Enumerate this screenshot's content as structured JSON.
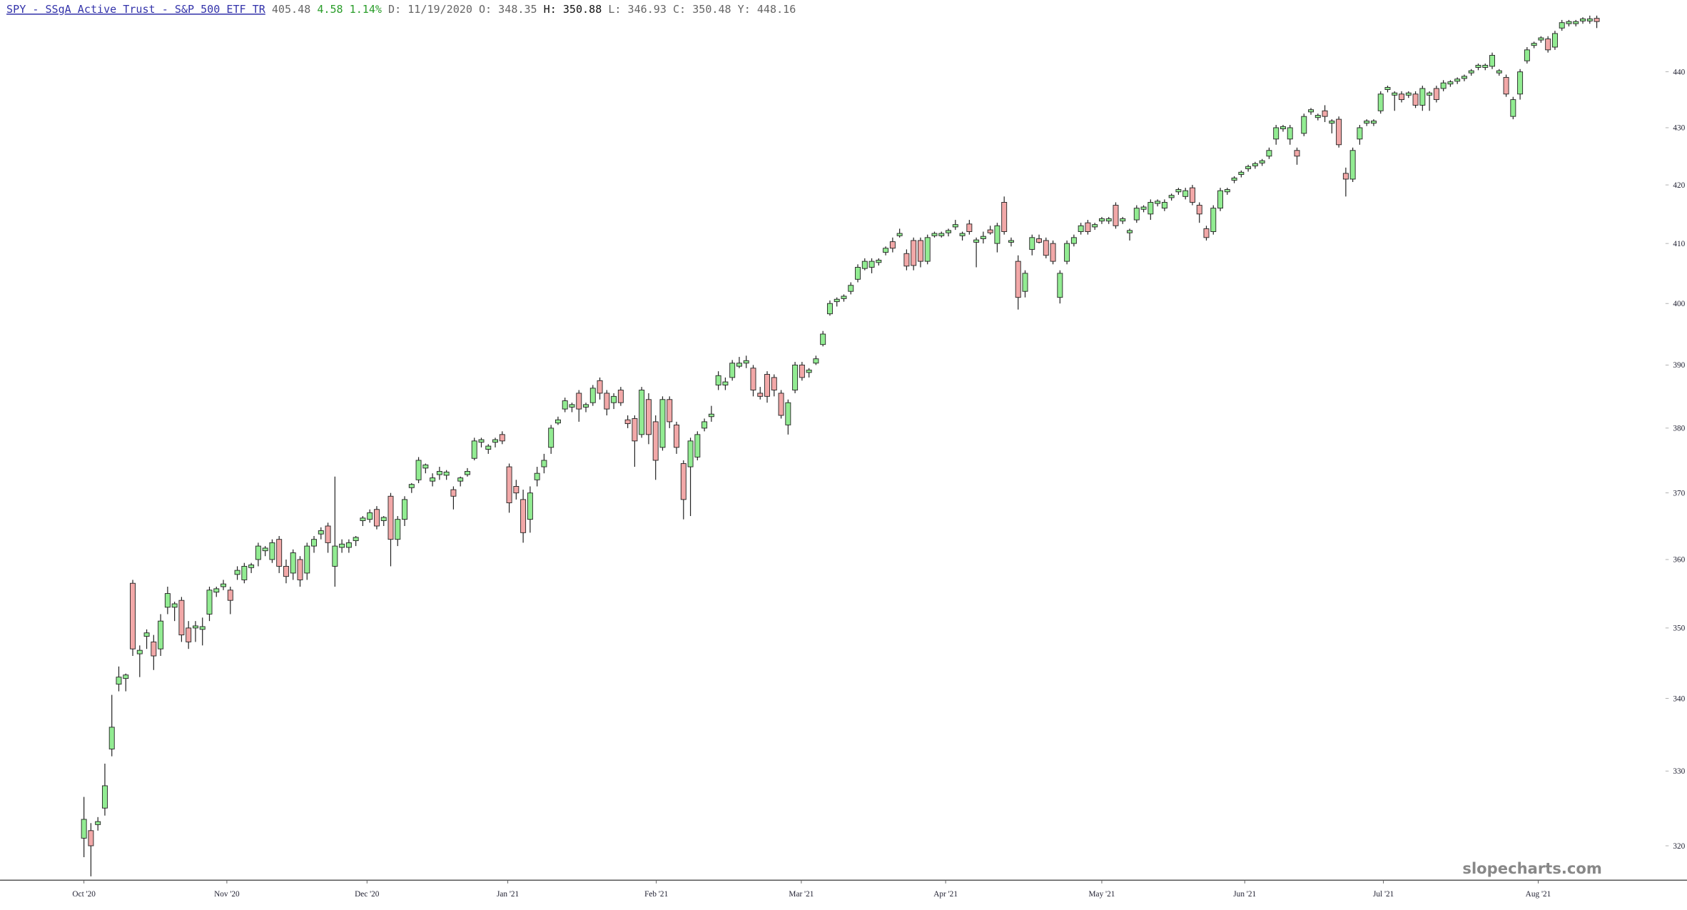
{
  "header": {
    "symbol": "SPY - SSgA Active Trust - S&P 500 ETF TR",
    "last": "405.48",
    "change": "4.58",
    "change_pct": "1.14%",
    "date": "D: 11/19/2020",
    "open": "O: 348.35",
    "high": "H: 350.88",
    "low": "L: 346.93",
    "close": "C: 350.48",
    "year_high": "Y: 448.16"
  },
  "chart_data": {
    "type": "candlestick",
    "watermark": "slopecharts.com",
    "up_color": "#92ec92",
    "down_color": "#f2a8a8",
    "log_scale": true,
    "ylim": [
      315.5,
      451
    ],
    "yticks": [
      320,
      330,
      340,
      350,
      360,
      370,
      380,
      390,
      400,
      410,
      420,
      430,
      440
    ],
    "xlim": [
      -12.04,
      229.94
    ],
    "xticks": [
      {
        "value": 0,
        "label": "Oct '20"
      },
      {
        "value": 20.5,
        "label": "Nov '20"
      },
      {
        "value": 40.6,
        "label": "Dec '20"
      },
      {
        "value": 60.8,
        "label": "Jan '21"
      },
      {
        "value": 82.1,
        "label": "Feb '21"
      },
      {
        "value": 102.9,
        "label": "Mar '21"
      },
      {
        "value": 123.6,
        "label": "Apr '21"
      },
      {
        "value": 146,
        "label": "May '21"
      },
      {
        "value": 166.5,
        "label": "Jun '21"
      },
      {
        "value": 186.4,
        "label": "Jul '21"
      },
      {
        "value": 208.6,
        "label": "Aug '21"
      }
    ],
    "ohlc": [
      [
        321,
        326.5,
        318.5,
        323.5
      ],
      [
        322,
        323,
        316,
        320
      ],
      [
        322.8,
        323.8,
        322,
        323.2
      ],
      [
        325,
        331,
        324,
        328
      ],
      [
        333,
        340.5,
        332,
        336
      ],
      [
        342,
        344.5,
        341,
        343
      ],
      [
        342.8,
        343.5,
        341,
        343.3
      ],
      [
        356.5,
        357,
        346,
        347
      ],
      [
        346.3,
        347.5,
        343,
        346.8
      ],
      [
        348.8,
        349.8,
        347,
        349.3
      ],
      [
        348,
        349,
        344,
        346
      ],
      [
        347,
        352,
        346,
        351
      ],
      [
        353,
        356,
        352,
        355
      ],
      [
        353,
        353.8,
        351,
        353.5
      ],
      [
        354,
        354.5,
        348,
        349
      ],
      [
        350,
        351,
        347,
        348
      ],
      [
        350,
        351,
        348,
        350.3
      ],
      [
        349.8,
        351.5,
        347.5,
        350.2
      ],
      [
        352,
        356,
        351,
        355.5
      ],
      [
        355.2,
        356,
        354.5,
        355.7
      ],
      [
        356,
        357,
        355.5,
        356.4
      ],
      [
        355.5,
        356,
        352,
        354
      ],
      [
        357.8,
        359,
        357,
        358.4
      ],
      [
        357,
        359.5,
        356.5,
        359
      ],
      [
        358.8,
        359.5,
        358,
        359.2
      ],
      [
        360,
        362.5,
        359,
        362
      ],
      [
        361.3,
        362,
        360.5,
        361.7
      ],
      [
        360,
        363,
        359.5,
        362.5
      ],
      [
        363,
        363.5,
        358,
        359
      ],
      [
        359,
        360,
        356.5,
        357.5
      ],
      [
        358,
        361.5,
        357,
        361
      ],
      [
        360,
        360.5,
        356,
        357
      ],
      [
        358,
        362.5,
        357,
        362
      ],
      [
        362,
        363.5,
        361,
        363
      ],
      [
        363.8,
        364.8,
        363,
        364.3
      ],
      [
        365,
        365.5,
        361,
        362.5
      ],
      [
        359,
        372.5,
        356,
        362
      ],
      [
        361.8,
        363,
        361,
        362.3
      ],
      [
        361.8,
        363,
        361,
        362.5
      ],
      [
        362.8,
        363.5,
        362,
        363.3
      ],
      [
        365.8,
        366.5,
        365,
        366.2
      ],
      [
        366,
        367.5,
        365.5,
        367
      ],
      [
        367.5,
        368,
        364.5,
        365
      ],
      [
        365.8,
        366.5,
        365,
        366.3
      ],
      [
        369.5,
        370,
        359,
        363
      ],
      [
        363,
        366.5,
        362,
        366
      ],
      [
        366,
        369.5,
        365,
        369
      ],
      [
        370.8,
        371.5,
        370,
        371.3
      ],
      [
        372,
        375.5,
        371.5,
        375
      ],
      [
        373.8,
        374.5,
        373,
        374.3
      ],
      [
        371.8,
        373,
        371,
        372.3
      ],
      [
        372.8,
        374,
        372,
        373.3
      ],
      [
        372.7,
        373.5,
        372,
        373.2
      ],
      [
        370.5,
        371,
        367.5,
        369.5
      ],
      [
        371.8,
        372.5,
        371,
        372.3
      ],
      [
        372.8,
        373.8,
        372.5,
        373.3
      ],
      [
        375.3,
        378.5,
        375,
        378
      ],
      [
        377.8,
        378.5,
        377,
        378.2
      ],
      [
        376.7,
        377.5,
        376,
        377.2
      ],
      [
        377.8,
        378.5,
        377,
        378.2
      ],
      [
        379,
        379.5,
        377.5,
        378
      ],
      [
        374,
        374.5,
        367,
        368.5
      ],
      [
        371,
        372,
        369,
        370
      ],
      [
        369,
        370.5,
        362.5,
        364
      ],
      [
        366,
        371,
        364,
        370
      ],
      [
        372,
        374,
        371,
        373
      ],
      [
        374,
        376,
        373,
        375
      ],
      [
        377,
        380.5,
        376,
        380
      ],
      [
        380.8,
        381.8,
        380.5,
        381.3
      ],
      [
        383,
        384.8,
        382.5,
        384.3
      ],
      [
        383.3,
        384,
        382.5,
        383.7
      ],
      [
        385.5,
        386,
        381,
        383
      ],
      [
        383.3,
        384,
        382.5,
        383.7
      ],
      [
        384,
        386.8,
        383.5,
        386.3
      ],
      [
        387.5,
        388,
        384.5,
        385.5
      ],
      [
        385.5,
        386,
        382,
        383
      ],
      [
        384,
        385.5,
        383,
        385
      ],
      [
        386,
        386.5,
        383.5,
        384
      ],
      [
        381.3,
        382,
        380,
        380.7
      ],
      [
        381.5,
        382,
        374,
        378
      ],
      [
        379,
        386.5,
        378.5,
        386
      ],
      [
        384.5,
        385.5,
        377.5,
        379
      ],
      [
        381,
        382,
        372,
        375
      ],
      [
        377,
        385,
        376.5,
        384.5
      ],
      [
        384.5,
        385,
        380,
        381
      ],
      [
        380.5,
        381,
        376,
        377
      ],
      [
        374.5,
        375,
        366,
        369
      ],
      [
        374,
        378.5,
        366.5,
        378
      ],
      [
        375.5,
        379.5,
        375,
        379
      ],
      [
        380,
        381.5,
        379.5,
        381
      ],
      [
        381.8,
        383.5,
        381,
        382.2
      ],
      [
        386.8,
        389,
        386,
        388.3
      ],
      [
        386.8,
        388,
        386,
        387.3
      ],
      [
        388,
        390.8,
        387.5,
        390.3
      ],
      [
        389.8,
        391.3,
        389.5,
        390.3
      ],
      [
        390.3,
        391.5,
        389.5,
        390.7
      ],
      [
        389.5,
        390,
        385,
        386
      ],
      [
        385.5,
        386.5,
        384.5,
        385
      ],
      [
        388.5,
        389,
        384,
        385
      ],
      [
        388,
        388.5,
        385,
        386
      ],
      [
        385.5,
        386,
        381.5,
        382
      ],
      [
        380.5,
        384.5,
        379,
        384
      ],
      [
        386,
        390.5,
        385.5,
        390
      ],
      [
        390,
        390.5,
        387.5,
        388
      ],
      [
        388.8,
        389.5,
        388,
        389.2
      ],
      [
        390.3,
        391.5,
        390,
        391
      ],
      [
        393.3,
        395.5,
        393,
        395
      ],
      [
        398.3,
        400.5,
        398,
        400
      ],
      [
        400.3,
        401,
        399.5,
        400.7
      ],
      [
        400.8,
        401.5,
        400.3,
        401.2
      ],
      [
        402,
        403.5,
        401.5,
        403
      ],
      [
        404,
        406.5,
        403.5,
        406
      ],
      [
        405.8,
        407.5,
        405.5,
        407
      ],
      [
        406,
        407.5,
        405,
        407
      ],
      [
        406.8,
        407.5,
        406.3,
        407.2
      ],
      [
        408.5,
        409.5,
        408,
        409.2
      ],
      [
        410.3,
        411,
        408.5,
        409.2
      ],
      [
        411.3,
        412.5,
        411,
        411.7
      ],
      [
        408.3,
        409,
        405.5,
        406.2
      ],
      [
        410.5,
        411,
        405.5,
        406.3
      ],
      [
        410.5,
        411,
        406,
        407
      ],
      [
        407,
        411.5,
        406.5,
        411
      ],
      [
        411.3,
        412,
        411,
        411.7
      ],
      [
        411.3,
        412,
        411,
        411.7
      ],
      [
        411.8,
        412.5,
        411.2,
        412.2
      ],
      [
        412.8,
        414,
        412.3,
        413.2
      ],
      [
        411.3,
        412,
        410.5,
        411.7
      ],
      [
        413.3,
        414,
        411.5,
        412
      ],
      [
        410.2,
        411,
        406,
        410.6
      ],
      [
        410.8,
        412,
        410,
        411.2
      ],
      [
        412.3,
        413,
        411.5,
        411.8
      ],
      [
        410,
        413.5,
        408.5,
        413
      ],
      [
        417,
        418,
        411.5,
        412
      ],
      [
        410.2,
        411,
        409.5,
        410.5
      ],
      [
        407,
        408,
        399,
        401
      ],
      [
        402,
        405.5,
        401,
        405
      ],
      [
        409,
        411.5,
        408,
        411
      ],
      [
        410.8,
        411.5,
        410,
        410.2
      ],
      [
        410.5,
        411,
        407.5,
        408
      ],
      [
        410,
        410.5,
        406.5,
        407
      ],
      [
        401,
        405.5,
        400,
        405
      ],
      [
        407,
        410.5,
        406.5,
        410
      ],
      [
        410,
        411.5,
        409.5,
        411
      ],
      [
        412,
        413.5,
        411.5,
        413
      ],
      [
        413.5,
        414,
        411.5,
        412
      ],
      [
        412.8,
        413.5,
        412.3,
        413.2
      ],
      [
        413.8,
        414.5,
        413.3,
        414.2
      ],
      [
        413.8,
        414.5,
        413.3,
        414.2
      ],
      [
        416.5,
        417,
        412.5,
        413
      ],
      [
        413.8,
        414.5,
        413.3,
        414.2
      ],
      [
        411.8,
        412.5,
        410.5,
        412.2
      ],
      [
        414,
        416.5,
        413.5,
        416
      ],
      [
        415.8,
        416.5,
        415.3,
        416.2
      ],
      [
        415,
        417.5,
        414,
        417
      ],
      [
        416.8,
        417.5,
        416.3,
        417.2
      ],
      [
        416,
        417.5,
        415.5,
        417
      ],
      [
        417.8,
        418.5,
        417.3,
        418.2
      ],
      [
        418.8,
        419.5,
        418.3,
        419.2
      ],
      [
        418,
        419.5,
        417.5,
        419
      ],
      [
        419.5,
        420,
        416.5,
        417
      ],
      [
        416.5,
        417,
        413.5,
        415
      ],
      [
        412.5,
        413,
        410.5,
        411
      ],
      [
        412,
        416.5,
        411.5,
        416
      ],
      [
        416,
        419.5,
        415.5,
        419
      ],
      [
        418.8,
        419.5,
        418.3,
        419.2
      ],
      [
        420.8,
        421.5,
        420.3,
        421.2
      ],
      [
        421.8,
        422.5,
        421.3,
        422.2
      ],
      [
        422.8,
        423.5,
        422.3,
        423.2
      ],
      [
        423.3,
        424,
        422.8,
        423.7
      ],
      [
        423.8,
        424.5,
        423.3,
        424.2
      ],
      [
        425,
        426.5,
        424.5,
        426
      ],
      [
        428,
        430.5,
        427,
        430
      ],
      [
        429.8,
        430.5,
        429.3,
        430.2
      ],
      [
        428,
        430.5,
        427,
        430
      ],
      [
        426,
        426.5,
        423.5,
        425
      ],
      [
        429,
        432.5,
        428.5,
        432
      ],
      [
        432.8,
        433.5,
        432.3,
        433.2
      ],
      [
        431.8,
        432.5,
        431.3,
        432.2
      ],
      [
        433,
        434,
        431,
        432
      ],
      [
        430.8,
        431.5,
        429,
        431.2
      ],
      [
        431.5,
        432,
        426.5,
        427
      ],
      [
        422,
        423,
        418,
        421
      ],
      [
        421,
        426.5,
        420.5,
        426
      ],
      [
        428,
        430.5,
        427,
        430
      ],
      [
        430.8,
        431.5,
        430.3,
        431.2
      ],
      [
        430.8,
        431.5,
        430.3,
        431.2
      ],
      [
        433,
        436.5,
        432.5,
        436
      ],
      [
        436.8,
        437.5,
        436.3,
        437.2
      ],
      [
        435.8,
        436.5,
        433,
        436.2
      ],
      [
        436,
        436.5,
        434.5,
        435
      ],
      [
        435.8,
        436.5,
        435.3,
        436.2
      ],
      [
        436,
        436.5,
        433.5,
        434
      ],
      [
        434,
        437.5,
        433,
        437
      ],
      [
        435.8,
        436.5,
        433,
        436.2
      ],
      [
        437,
        437.5,
        434.5,
        435
      ],
      [
        437,
        438.5,
        436.5,
        438
      ],
      [
        437.8,
        438.5,
        437.3,
        438.2
      ],
      [
        438.3,
        439,
        437.8,
        438.7
      ],
      [
        438.8,
        439.5,
        438.3,
        439.2
      ],
      [
        439.8,
        440.5,
        439.3,
        440.2
      ],
      [
        440.8,
        441.5,
        440.3,
        441.2
      ],
      [
        440.8,
        441.5,
        440.3,
        441.2
      ],
      [
        441,
        443.5,
        440.5,
        443
      ],
      [
        439.8,
        440.5,
        439.3,
        440.2
      ],
      [
        439,
        439.5,
        435.5,
        436
      ],
      [
        432,
        435.5,
        431.5,
        435
      ],
      [
        436,
        440.5,
        435,
        440
      ],
      [
        442,
        444.5,
        441.5,
        444
      ],
      [
        444.8,
        445.5,
        444.3,
        445.2
      ],
      [
        445.8,
        446.5,
        445.3,
        446.2
      ],
      [
        446,
        446.5,
        443.5,
        444
      ],
      [
        444.5,
        447.5,
        444,
        447
      ],
      [
        448,
        449.5,
        447.5,
        449
      ],
      [
        448.8,
        449.5,
        448.3,
        449.2
      ],
      [
        448.8,
        449.5,
        448.3,
        449.2
      ],
      [
        449.3,
        450,
        448.8,
        449.7
      ],
      [
        449.3,
        450.3,
        448.8,
        449.7
      ],
      [
        449.8,
        450.3,
        448,
        449.2
      ]
    ]
  }
}
